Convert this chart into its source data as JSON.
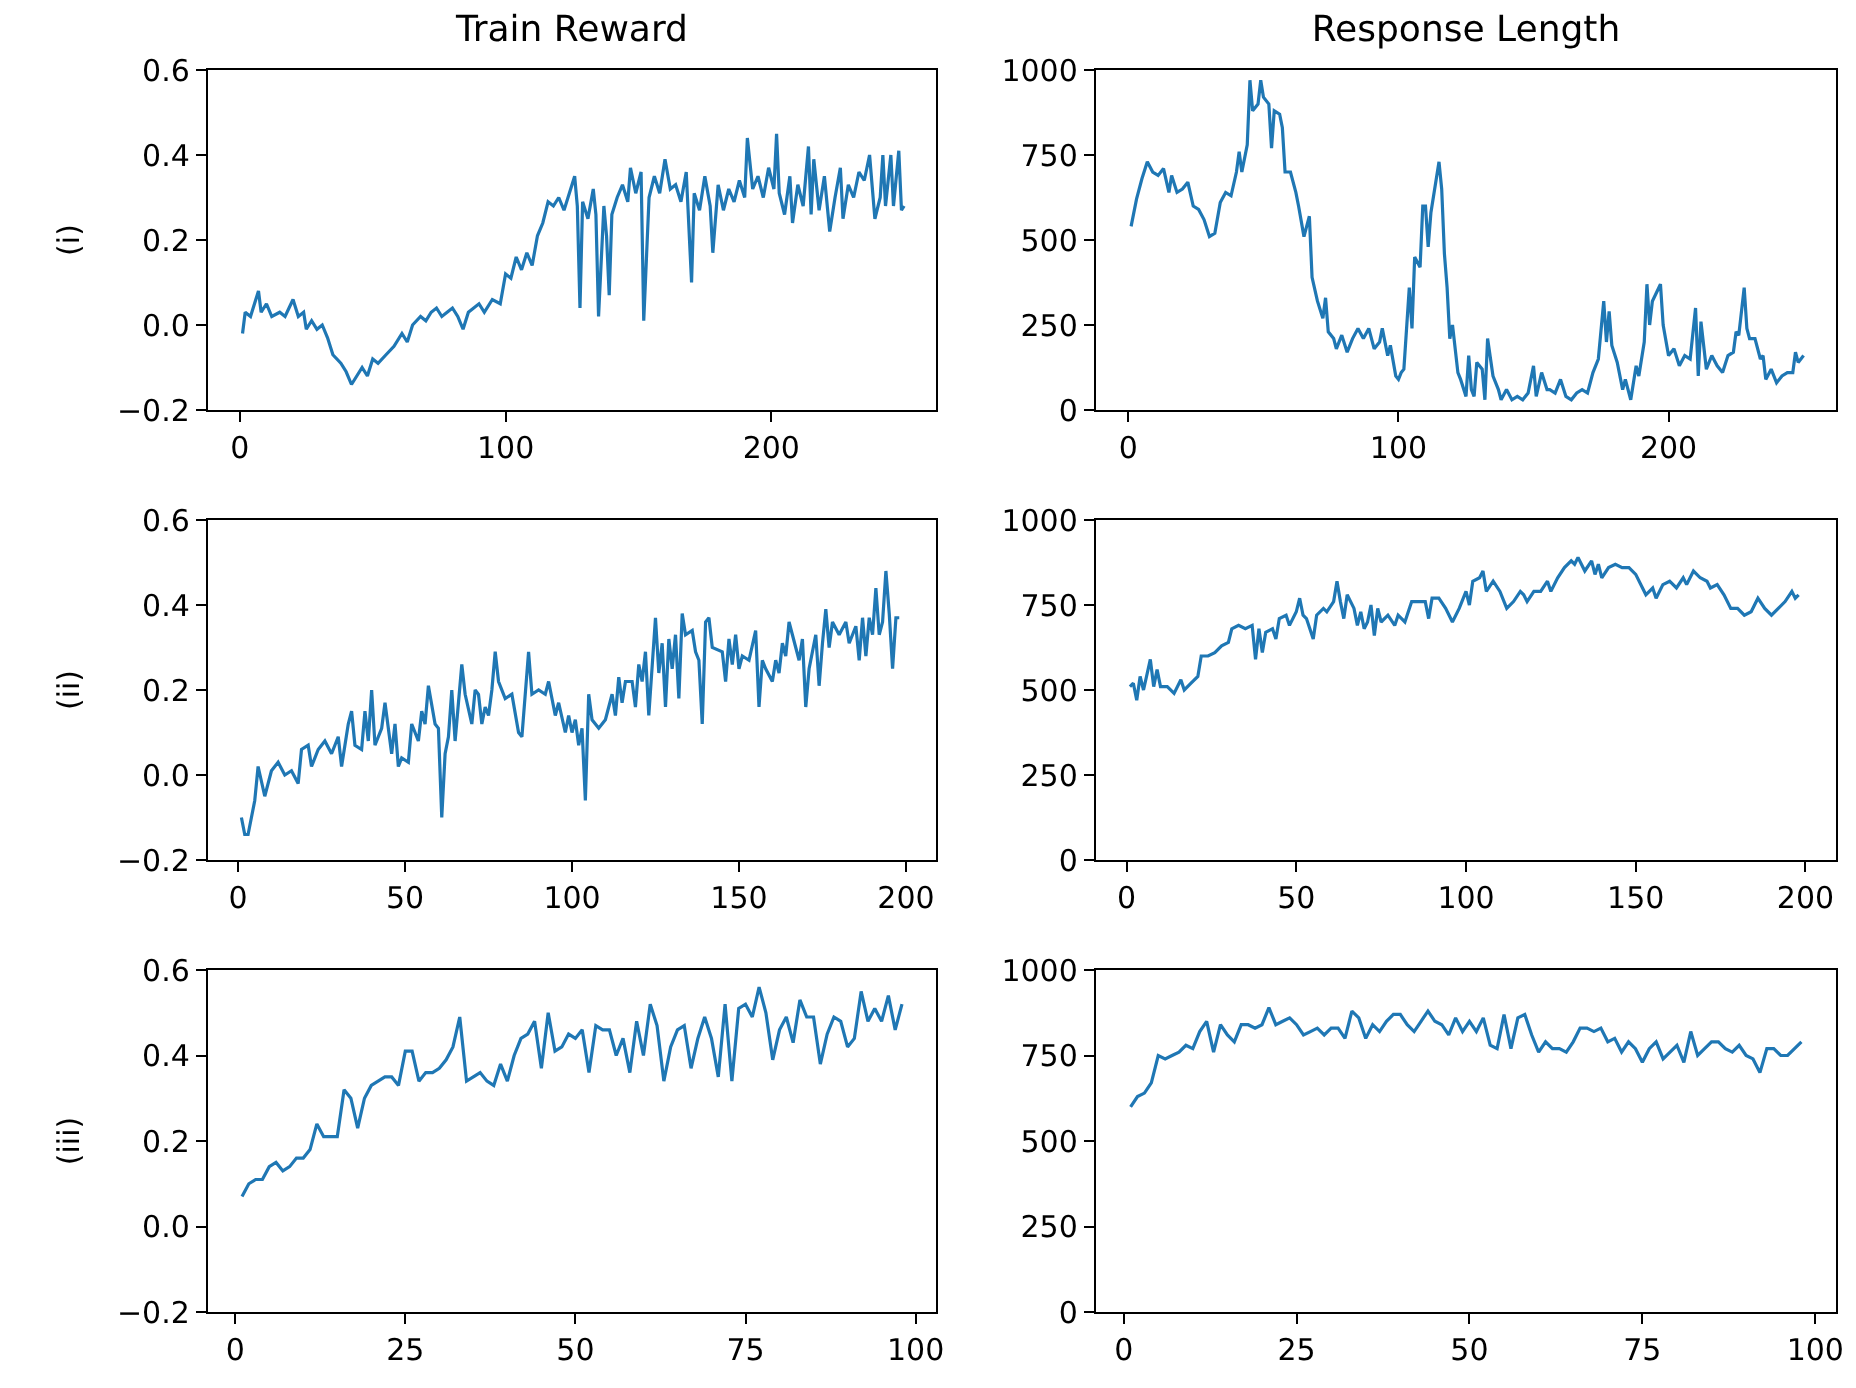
{
  "chart_data": [
    {
      "type": "line",
      "title": "Train Reward",
      "ylabel": "(i)",
      "xlim": [
        -12,
        262
      ],
      "xticks": [
        0,
        100,
        200
      ],
      "ylim": [
        -0.2,
        0.6
      ],
      "yticks": [
        {
          "value": -0.2,
          "label": "−0.2"
        },
        {
          "value": 0,
          "label": "0.0"
        },
        {
          "value": 0.2,
          "label": "0.2"
        },
        {
          "value": 0.4,
          "label": "0.4"
        },
        {
          "value": 0.6,
          "label": "0.6"
        }
      ],
      "series": [
        {
          "color": "#1f77b4",
          "x": [
            1,
            2,
            4,
            7,
            8,
            10,
            12,
            15,
            17,
            20,
            22,
            24,
            25,
            27,
            29,
            31,
            33,
            35,
            38,
            40,
            42,
            44,
            46,
            48,
            50,
            52,
            55,
            58,
            61,
            63,
            65,
            68,
            70,
            72,
            74,
            76,
            78,
            80,
            82,
            84,
            86,
            90,
            92,
            95,
            98,
            100,
            102,
            104,
            106,
            108,
            110,
            112,
            114,
            116,
            118,
            120,
            122,
            124,
            126,
            127,
            128,
            129,
            131,
            133,
            134,
            135,
            137,
            138,
            139,
            140,
            142,
            144,
            146,
            147,
            149,
            151,
            152,
            154,
            156,
            158,
            160,
            162,
            164,
            166,
            168,
            170,
            171,
            173,
            175,
            177,
            178,
            180,
            182,
            184,
            186,
            188,
            190,
            191,
            193,
            195,
            197,
            199,
            201,
            202,
            203,
            205,
            207,
            208,
            210,
            212,
            214,
            215,
            216,
            218,
            220,
            222,
            224,
            226,
            227,
            229,
            231,
            233,
            235,
            237,
            239,
            241,
            242,
            243,
            245,
            246,
            248,
            249,
            250
          ],
          "values": [
            -0.02,
            0.03,
            0.02,
            0.08,
            0.03,
            0.05,
            0.02,
            0.03,
            0.02,
            0.06,
            0.02,
            0.03,
            -0.01,
            0.01,
            -0.01,
            0.0,
            -0.03,
            -0.07,
            -0.09,
            -0.11,
            -0.14,
            -0.12,
            -0.1,
            -0.12,
            -0.08,
            -0.09,
            -0.07,
            -0.05,
            -0.02,
            -0.04,
            0.0,
            0.02,
            0.01,
            0.03,
            0.04,
            0.02,
            0.03,
            0.04,
            0.02,
            -0.01,
            0.03,
            0.05,
            0.03,
            0.06,
            0.05,
            0.12,
            0.11,
            0.16,
            0.13,
            0.17,
            0.14,
            0.21,
            0.24,
            0.29,
            0.28,
            0.3,
            0.27,
            0.31,
            0.35,
            0.28,
            0.04,
            0.29,
            0.25,
            0.32,
            0.26,
            0.02,
            0.28,
            0.21,
            0.07,
            0.26,
            0.3,
            0.33,
            0.29,
            0.37,
            0.31,
            0.36,
            0.01,
            0.3,
            0.35,
            0.31,
            0.39,
            0.32,
            0.33,
            0.29,
            0.36,
            0.1,
            0.31,
            0.27,
            0.35,
            0.28,
            0.17,
            0.33,
            0.27,
            0.32,
            0.29,
            0.34,
            0.3,
            0.44,
            0.32,
            0.35,
            0.3,
            0.37,
            0.32,
            0.45,
            0.31,
            0.26,
            0.35,
            0.24,
            0.33,
            0.28,
            0.42,
            0.26,
            0.39,
            0.27,
            0.35,
            0.22,
            0.3,
            0.37,
            0.25,
            0.33,
            0.3,
            0.36,
            0.34,
            0.4,
            0.25,
            0.3,
            0.4,
            0.28,
            0.4,
            0.28,
            0.41,
            0.27,
            0.28
          ]
        }
      ]
    },
    {
      "type": "line",
      "title": "Response Length",
      "xlim": [
        -12,
        262
      ],
      "xticks": [
        0,
        100,
        200
      ],
      "ylim": [
        0,
        1000
      ],
      "yticks": [
        0,
        250,
        500,
        750,
        1000
      ],
      "series": [
        {
          "color": "#1f77b4",
          "x": [
            1,
            3,
            5,
            7,
            9,
            11,
            13,
            15,
            16,
            18,
            20,
            22,
            24,
            26,
            28,
            30,
            32,
            34,
            36,
            38,
            40,
            41,
            42,
            44,
            45,
            46,
            48,
            49,
            50,
            52,
            53,
            54,
            56,
            57,
            58,
            60,
            62,
            63,
            65,
            67,
            68,
            70,
            72,
            73,
            74,
            76,
            77,
            79,
            81,
            83,
            85,
            87,
            89,
            91,
            93,
            94,
            96,
            97,
            99,
            100,
            101,
            102,
            104,
            105,
            106,
            108,
            109,
            110,
            111,
            112,
            114,
            115,
            116,
            117,
            118,
            119,
            120,
            122,
            123,
            125,
            126,
            127,
            128,
            129,
            131,
            132,
            133,
            135,
            137,
            138,
            140,
            142,
            144,
            146,
            148,
            150,
            151,
            153,
            155,
            156,
            158,
            160,
            162,
            164,
            166,
            168,
            170,
            172,
            174,
            176,
            177,
            178,
            179,
            181,
            183,
            184,
            186,
            188,
            189,
            191,
            192,
            193,
            194,
            197,
            198,
            200,
            202,
            204,
            206,
            208,
            210,
            211,
            212,
            214,
            216,
            218,
            220,
            222,
            224,
            225,
            226,
            228,
            229,
            230,
            232,
            234,
            235,
            236,
            238,
            240,
            242,
            244,
            246,
            247,
            248,
            250
          ],
          "values": [
            540,
            620,
            680,
            730,
            700,
            690,
            710,
            640,
            690,
            640,
            650,
            670,
            600,
            590,
            560,
            510,
            520,
            610,
            640,
            630,
            700,
            760,
            700,
            780,
            970,
            880,
            900,
            970,
            920,
            900,
            770,
            880,
            870,
            830,
            700,
            700,
            640,
            600,
            510,
            570,
            390,
            320,
            270,
            330,
            230,
            210,
            180,
            220,
            170,
            210,
            240,
            210,
            240,
            180,
            200,
            240,
            160,
            190,
            100,
            90,
            110,
            120,
            360,
            240,
            450,
            420,
            600,
            600,
            480,
            580,
            680,
            730,
            650,
            460,
            360,
            210,
            250,
            110,
            90,
            40,
            160,
            60,
            40,
            140,
            120,
            30,
            210,
            100,
            60,
            30,
            60,
            30,
            40,
            30,
            50,
            130,
            40,
            110,
            60,
            60,
            50,
            90,
            40,
            30,
            50,
            60,
            50,
            110,
            150,
            320,
            200,
            290,
            190,
            140,
            60,
            90,
            30,
            130,
            100,
            200,
            370,
            250,
            320,
            370,
            250,
            160,
            180,
            130,
            160,
            150,
            300,
            100,
            260,
            120,
            160,
            130,
            110,
            160,
            170,
            230,
            220,
            360,
            240,
            210,
            210,
            150,
            160,
            90,
            120,
            80,
            100,
            110,
            110,
            170,
            140,
            160
          ]
        }
      ]
    },
    {
      "type": "line",
      "ylabel": "(ii)",
      "xlim": [
        -9,
        209
      ],
      "xticks": [
        0,
        50,
        100,
        150,
        200
      ],
      "ylim": [
        -0.2,
        0.6
      ],
      "yticks": [
        {
          "value": -0.2,
          "label": "−0.2"
        },
        {
          "value": 0,
          "label": "0.0"
        },
        {
          "value": 0.2,
          "label": "0.2"
        },
        {
          "value": 0.4,
          "label": "0.4"
        },
        {
          "value": 0.6,
          "label": "0.6"
        }
      ],
      "series": [
        {
          "color": "#1f77b4",
          "x": [
            1,
            2,
            3,
            5,
            6,
            8,
            10,
            12,
            14,
            16,
            18,
            19,
            21,
            22,
            24,
            26,
            28,
            30,
            31,
            33,
            34,
            35,
            37,
            38,
            39,
            40,
            41,
            43,
            44,
            46,
            47,
            48,
            49,
            51,
            52,
            54,
            55,
            56,
            57,
            59,
            60,
            61,
            62,
            63,
            64,
            65,
            67,
            68,
            70,
            71,
            72,
            73,
            74,
            75,
            76,
            77,
            78,
            80,
            82,
            84,
            85,
            87,
            88,
            90,
            92,
            93,
            95,
            96,
            98,
            99,
            100,
            101,
            102,
            103,
            104,
            105,
            106,
            108,
            110,
            112,
            113,
            114,
            115,
            116,
            118,
            119,
            120,
            121,
            122,
            123,
            125,
            126,
            127,
            128,
            129,
            130,
            131,
            132,
            133,
            134,
            136,
            137,
            138,
            139,
            140,
            141,
            142,
            145,
            146,
            147,
            148,
            149,
            150,
            151,
            153,
            155,
            156,
            157,
            158,
            160,
            161,
            162,
            163,
            164,
            165,
            166,
            168,
            169,
            170,
            171,
            173,
            174,
            175,
            176,
            177,
            178,
            180,
            182,
            183,
            185,
            186,
            187,
            188,
            189,
            190,
            191,
            192,
            193,
            194,
            195,
            196,
            197,
            198
          ],
          "values": [
            -0.1,
            -0.14,
            -0.14,
            -0.06,
            0.02,
            -0.05,
            0.01,
            0.03,
            0.0,
            0.01,
            -0.02,
            0.06,
            0.07,
            0.02,
            0.06,
            0.08,
            0.05,
            0.09,
            0.02,
            0.12,
            0.15,
            0.07,
            0.06,
            0.15,
            0.08,
            0.2,
            0.07,
            0.11,
            0.17,
            0.05,
            0.12,
            0.02,
            0.04,
            0.03,
            0.12,
            0.08,
            0.15,
            0.12,
            0.21,
            0.12,
            0.11,
            -0.1,
            0.05,
            0.09,
            0.2,
            0.08,
            0.26,
            0.19,
            0.12,
            0.2,
            0.19,
            0.12,
            0.16,
            0.14,
            0.2,
            0.29,
            0.22,
            0.18,
            0.19,
            0.1,
            0.09,
            0.29,
            0.19,
            0.2,
            0.19,
            0.22,
            0.14,
            0.17,
            0.1,
            0.14,
            0.1,
            0.13,
            0.07,
            0.11,
            -0.06,
            0.19,
            0.13,
            0.11,
            0.13,
            0.19,
            0.14,
            0.23,
            0.17,
            0.22,
            0.22,
            0.16,
            0.26,
            0.22,
            0.29,
            0.14,
            0.37,
            0.24,
            0.31,
            0.16,
            0.32,
            0.25,
            0.33,
            0.18,
            0.38,
            0.33,
            0.34,
            0.29,
            0.27,
            0.12,
            0.36,
            0.37,
            0.3,
            0.29,
            0.22,
            0.32,
            0.26,
            0.33,
            0.25,
            0.28,
            0.27,
            0.34,
            0.16,
            0.27,
            0.25,
            0.22,
            0.27,
            0.24,
            0.31,
            0.28,
            0.36,
            0.33,
            0.27,
            0.32,
            0.16,
            0.25,
            0.33,
            0.21,
            0.31,
            0.39,
            0.3,
            0.36,
            0.33,
            0.36,
            0.31,
            0.35,
            0.27,
            0.37,
            0.28,
            0.37,
            0.33,
            0.44,
            0.33,
            0.36,
            0.48,
            0.38,
            0.25,
            0.37,
            0.37
          ]
        }
      ]
    },
    {
      "type": "line",
      "xlim": [
        -9,
        209
      ],
      "xticks": [
        0,
        50,
        100,
        150,
        200
      ],
      "ylim": [
        0,
        1000
      ],
      "yticks": [
        0,
        250,
        500,
        750,
        1000
      ],
      "series": [
        {
          "color": "#1f77b4",
          "x": [
            1,
            2,
            3,
            4,
            5,
            7,
            8,
            9,
            10,
            12,
            14,
            16,
            17,
            19,
            21,
            22,
            24,
            26,
            28,
            30,
            31,
            33,
            35,
            37,
            38,
            39,
            40,
            41,
            43,
            44,
            45,
            47,
            48,
            50,
            51,
            52,
            53,
            55,
            56,
            58,
            59,
            61,
            62,
            63,
            64,
            65,
            67,
            68,
            69,
            70,
            71,
            72,
            73,
            74,
            75,
            77,
            79,
            80,
            82,
            84,
            86,
            88,
            89,
            90,
            92,
            94,
            96,
            98,
            100,
            101,
            102,
            104,
            105,
            106,
            108,
            110,
            112,
            114,
            116,
            117,
            118,
            120,
            122,
            124,
            125,
            127,
            129,
            131,
            132,
            133,
            134,
            135,
            137,
            138,
            139,
            140,
            142,
            144,
            146,
            148,
            150,
            152,
            153,
            155,
            156,
            158,
            160,
            162,
            164,
            165,
            167,
            169,
            171,
            172,
            174,
            176,
            178,
            180,
            182,
            184,
            186,
            188,
            190,
            192,
            194,
            196,
            197,
            198
          ],
          "values": [
            510,
            520,
            470,
            540,
            500,
            590,
            510,
            560,
            510,
            510,
            490,
            530,
            500,
            520,
            540,
            600,
            600,
            610,
            630,
            640,
            680,
            690,
            680,
            690,
            590,
            680,
            610,
            670,
            680,
            650,
            710,
            720,
            690,
            730,
            770,
            720,
            710,
            650,
            720,
            740,
            730,
            760,
            820,
            760,
            710,
            780,
            740,
            690,
            730,
            680,
            700,
            750,
            660,
            740,
            700,
            720,
            690,
            720,
            700,
            760,
            760,
            760,
            710,
            770,
            770,
            740,
            700,
            740,
            790,
            750,
            820,
            830,
            850,
            790,
            820,
            790,
            740,
            760,
            790,
            780,
            760,
            790,
            790,
            820,
            790,
            830,
            860,
            880,
            870,
            890,
            870,
            850,
            880,
            840,
            870,
            830,
            860,
            870,
            860,
            860,
            840,
            800,
            780,
            800,
            770,
            810,
            820,
            800,
            830,
            810,
            850,
            830,
            820,
            800,
            810,
            780,
            740,
            740,
            720,
            730,
            770,
            740,
            720,
            740,
            760,
            790,
            770,
            780
          ]
        }
      ]
    },
    {
      "type": "line",
      "ylabel": "(iii)",
      "xlim": [
        -4,
        103
      ],
      "xticks": [
        0,
        25,
        50,
        75,
        100
      ],
      "ylim": [
        -0.2,
        0.6
      ],
      "yticks": [
        {
          "value": -0.2,
          "label": "−0.2"
        },
        {
          "value": 0,
          "label": "0.0"
        },
        {
          "value": 0.2,
          "label": "0.2"
        },
        {
          "value": 0.4,
          "label": "0.4"
        },
        {
          "value": 0.6,
          "label": "0.6"
        }
      ],
      "series": [
        {
          "color": "#1f77b4",
          "x": [
            1,
            2,
            3,
            4,
            5,
            6,
            7,
            8,
            9,
            10,
            11,
            12,
            13,
            14,
            15,
            16,
            17,
            18,
            19,
            20,
            21,
            22,
            23,
            24,
            25,
            26,
            27,
            28,
            29,
            30,
            31,
            32,
            33,
            34,
            35,
            36,
            37,
            38,
            39,
            40,
            41,
            42,
            43,
            44,
            45,
            46,
            47,
            48,
            49,
            50,
            51,
            52,
            53,
            54,
            55,
            56,
            57,
            58,
            59,
            60,
            61,
            62,
            63,
            64,
            65,
            66,
            67,
            68,
            69,
            70,
            71,
            72,
            73,
            74,
            75,
            76,
            77,
            78,
            79,
            80,
            81,
            82,
            83,
            84,
            85,
            86,
            87,
            88,
            89,
            90,
            91,
            92,
            93,
            94,
            95,
            96,
            97,
            98
          ],
          "values": [
            0.07,
            0.1,
            0.11,
            0.11,
            0.14,
            0.15,
            0.13,
            0.14,
            0.16,
            0.16,
            0.18,
            0.24,
            0.21,
            0.21,
            0.21,
            0.32,
            0.3,
            0.23,
            0.3,
            0.33,
            0.34,
            0.35,
            0.35,
            0.33,
            0.41,
            0.41,
            0.34,
            0.36,
            0.36,
            0.37,
            0.39,
            0.42,
            0.49,
            0.34,
            0.35,
            0.36,
            0.34,
            0.33,
            0.38,
            0.34,
            0.4,
            0.44,
            0.45,
            0.48,
            0.37,
            0.5,
            0.41,
            0.42,
            0.45,
            0.44,
            0.46,
            0.36,
            0.47,
            0.46,
            0.46,
            0.4,
            0.44,
            0.36,
            0.48,
            0.4,
            0.52,
            0.47,
            0.34,
            0.42,
            0.46,
            0.47,
            0.37,
            0.44,
            0.49,
            0.44,
            0.35,
            0.52,
            0.34,
            0.51,
            0.52,
            0.49,
            0.56,
            0.5,
            0.39,
            0.46,
            0.49,
            0.43,
            0.53,
            0.49,
            0.49,
            0.38,
            0.45,
            0.49,
            0.48,
            0.42,
            0.44,
            0.55,
            0.48,
            0.51,
            0.48,
            0.54,
            0.46,
            0.52
          ]
        }
      ]
    },
    {
      "type": "line",
      "xlim": [
        -4,
        103
      ],
      "xticks": [
        0,
        25,
        50,
        75,
        100
      ],
      "ylim": [
        0,
        1000
      ],
      "yticks": [
        0,
        250,
        500,
        750,
        1000
      ],
      "series": [
        {
          "color": "#1f77b4",
          "x": [
            1,
            2,
            3,
            4,
            5,
            6,
            7,
            8,
            9,
            10,
            11,
            12,
            13,
            14,
            15,
            16,
            17,
            18,
            19,
            20,
            21,
            22,
            23,
            24,
            25,
            26,
            27,
            28,
            29,
            30,
            31,
            32,
            33,
            34,
            35,
            36,
            37,
            38,
            39,
            40,
            41,
            42,
            43,
            44,
            45,
            46,
            47,
            48,
            49,
            50,
            51,
            52,
            53,
            54,
            55,
            56,
            57,
            58,
            59,
            60,
            61,
            62,
            63,
            64,
            65,
            66,
            67,
            68,
            69,
            70,
            71,
            72,
            73,
            74,
            75,
            76,
            77,
            78,
            79,
            80,
            81,
            82,
            83,
            84,
            85,
            86,
            87,
            88,
            89,
            90,
            91,
            92,
            93,
            94,
            95,
            96,
            97,
            98
          ],
          "values": [
            600,
            630,
            640,
            670,
            750,
            740,
            750,
            760,
            780,
            770,
            820,
            850,
            760,
            840,
            810,
            790,
            840,
            840,
            830,
            840,
            890,
            840,
            850,
            860,
            840,
            810,
            820,
            830,
            810,
            830,
            830,
            800,
            880,
            860,
            800,
            840,
            820,
            850,
            870,
            870,
            840,
            820,
            850,
            880,
            850,
            840,
            810,
            860,
            820,
            850,
            820,
            860,
            780,
            770,
            870,
            770,
            860,
            870,
            810,
            760,
            790,
            770,
            770,
            760,
            790,
            830,
            830,
            820,
            830,
            790,
            800,
            760,
            790,
            770,
            730,
            770,
            790,
            740,
            760,
            780,
            730,
            820,
            750,
            770,
            790,
            790,
            770,
            760,
            780,
            750,
            740,
            700,
            770,
            770,
            750,
            750,
            770,
            790
          ]
        }
      ]
    }
  ]
}
